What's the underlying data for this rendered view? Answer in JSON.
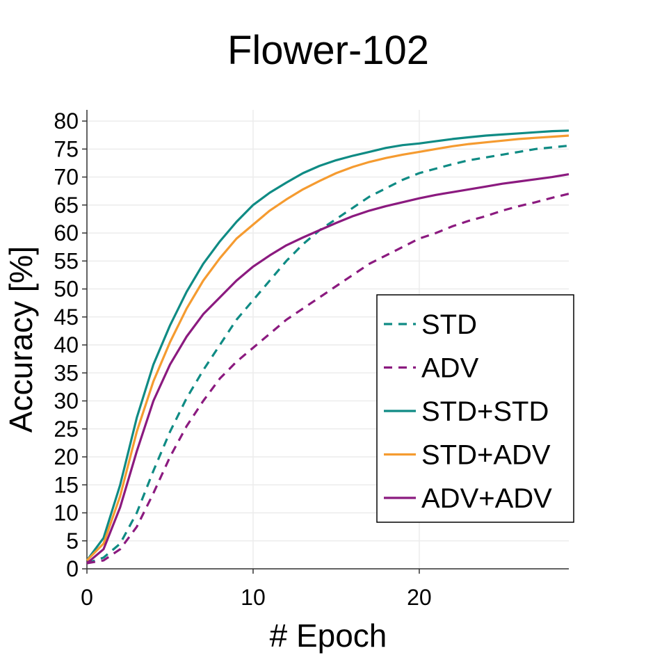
{
  "chart_data": {
    "type": "line",
    "title": "Flower-102",
    "xlabel": "# Epoch",
    "ylabel": "Accuracy [%]",
    "xlim": [
      0,
      29
    ],
    "ylim": [
      0,
      82
    ],
    "xticks": [
      0,
      10,
      20
    ],
    "yticks": [
      0,
      5,
      10,
      15,
      20,
      25,
      30,
      35,
      40,
      45,
      50,
      55,
      60,
      65,
      70,
      75,
      80
    ],
    "grid": true,
    "legend_position": "right",
    "x": [
      0,
      1,
      2,
      3,
      4,
      5,
      6,
      7,
      8,
      9,
      10,
      11,
      12,
      13,
      14,
      15,
      16,
      17,
      18,
      19,
      20,
      21,
      22,
      23,
      24,
      25,
      26,
      27,
      28,
      29
    ],
    "series": [
      {
        "name": "STD",
        "color": "#0f8b84",
        "dash": "dashed",
        "values": [
          1.0,
          2.0,
          4.5,
          10.0,
          17.5,
          24.5,
          30.5,
          35.5,
          40.0,
          44.5,
          48.0,
          51.5,
          55.0,
          58.0,
          60.5,
          62.5,
          64.5,
          66.5,
          68.0,
          69.5,
          70.7,
          71.5,
          72.3,
          73.0,
          73.5,
          74.0,
          74.5,
          75.0,
          75.3,
          75.6
        ]
      },
      {
        "name": "ADV",
        "color": "#8b1a7f",
        "dash": "dashed",
        "values": [
          1.0,
          1.5,
          3.5,
          7.5,
          13.5,
          20.0,
          25.5,
          30.0,
          34.0,
          37.0,
          39.5,
          42.0,
          44.5,
          46.5,
          48.5,
          50.5,
          52.5,
          54.5,
          56.0,
          57.5,
          59.0,
          60.0,
          61.2,
          62.2,
          63.0,
          64.0,
          64.8,
          65.5,
          66.3,
          67.0
        ]
      },
      {
        "name": "STD+STD",
        "color": "#0f8b84",
        "dash": "solid",
        "values": [
          1.5,
          5.5,
          15.0,
          27.0,
          36.5,
          43.5,
          49.5,
          54.5,
          58.5,
          62.0,
          65.0,
          67.2,
          69.0,
          70.7,
          72.0,
          73.0,
          73.8,
          74.5,
          75.2,
          75.7,
          76.0,
          76.4,
          76.8,
          77.1,
          77.4,
          77.6,
          77.8,
          78.0,
          78.2,
          78.3
        ]
      },
      {
        "name": "STD+ADV",
        "color": "#f59b30",
        "dash": "solid",
        "values": [
          1.5,
          4.5,
          13.0,
          24.5,
          33.5,
          40.5,
          46.5,
          51.5,
          55.5,
          59.0,
          61.5,
          64.0,
          66.0,
          67.8,
          69.3,
          70.7,
          71.8,
          72.7,
          73.4,
          74.0,
          74.5,
          75.0,
          75.5,
          75.9,
          76.2,
          76.5,
          76.8,
          77.0,
          77.2,
          77.4
        ]
      },
      {
        "name": "ADV+ADV",
        "color": "#8b1a7f",
        "dash": "solid",
        "values": [
          1.0,
          3.5,
          11.0,
          21.0,
          30.0,
          36.5,
          41.5,
          45.5,
          48.5,
          51.5,
          54.0,
          56.0,
          57.8,
          59.2,
          60.5,
          61.8,
          63.0,
          64.0,
          64.8,
          65.5,
          66.2,
          66.8,
          67.3,
          67.8,
          68.3,
          68.8,
          69.2,
          69.6,
          70.0,
          70.5
        ]
      }
    ]
  }
}
